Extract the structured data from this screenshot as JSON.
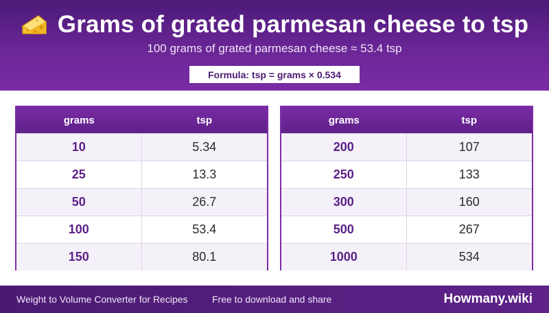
{
  "header": {
    "icon": "cheese-icon",
    "title": "Grams of grated parmesan cheese to tsp",
    "subtitle": "100 grams of grated parmesan cheese ≈ 53.4 tsp",
    "formula": "Formula: tsp = grams × 0.534"
  },
  "tables": [
    {
      "columns": [
        "grams",
        "tsp"
      ],
      "rows": [
        {
          "grams": "10",
          "tsp": "5.34"
        },
        {
          "grams": "25",
          "tsp": "13.3"
        },
        {
          "grams": "50",
          "tsp": "26.7"
        },
        {
          "grams": "100",
          "tsp": "53.4"
        },
        {
          "grams": "150",
          "tsp": "80.1"
        }
      ]
    },
    {
      "columns": [
        "grams",
        "tsp"
      ],
      "rows": [
        {
          "grams": "200",
          "tsp": "107"
        },
        {
          "grams": "250",
          "tsp": "133"
        },
        {
          "grams": "300",
          "tsp": "160"
        },
        {
          "grams": "500",
          "tsp": "267"
        },
        {
          "grams": "1000",
          "tsp": "534"
        }
      ]
    }
  ],
  "footer": {
    "left": "Weight to Volume Converter for Recipes",
    "mid": "Free to download and share",
    "brand": "Howmany.wiki"
  },
  "colors": {
    "header_purple": "#6a2696",
    "accent_purple": "#7b2ca6",
    "value_purple": "#5a1f86",
    "footer_purple": "#4a1a72",
    "cheese_yellow": "#f7c531"
  }
}
